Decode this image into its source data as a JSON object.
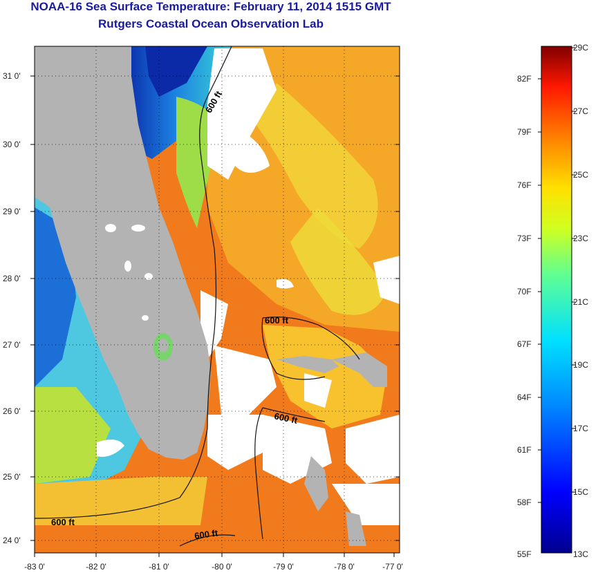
{
  "title": "NOAA-16 Sea Surface Temperature:  February 11, 2014 1515 GMT",
  "subtitle": "Rutgers Coastal Ocean Observation Lab",
  "map": {
    "lat_labels": [
      "31 0'",
      "30 0'",
      "29 0'",
      "28 0'",
      "27 0'",
      "26 0'",
      "25 0'",
      "24 0'"
    ],
    "lon_labels": [
      "-83 0'",
      "-82 0'",
      "-81 0'",
      "-80 0'",
      "-79 0'",
      "-78 0'",
      "-77 0'"
    ],
    "contour_label": "600 ft",
    "colors": {
      "land": "#b3b3b3",
      "cloud": "#ffffff",
      "cold": "#0a2aa8",
      "cool": "#2aa3e6",
      "mild": "#38e0d0",
      "warm_green": "#9ee046",
      "yellow": "#f0e030",
      "orange": "#f5a020",
      "deep_orange": "#f06818",
      "red_orange": "#e84a14"
    }
  },
  "colorbar": {
    "fahrenheit": [
      "82F",
      "79F",
      "76F",
      "73F",
      "70F",
      "67F",
      "64F",
      "61F",
      "58F",
      "55F"
    ],
    "celsius": [
      "29C",
      "27C",
      "25C",
      "23C",
      "21C",
      "19C",
      "17C",
      "15C",
      "13C"
    ]
  }
}
